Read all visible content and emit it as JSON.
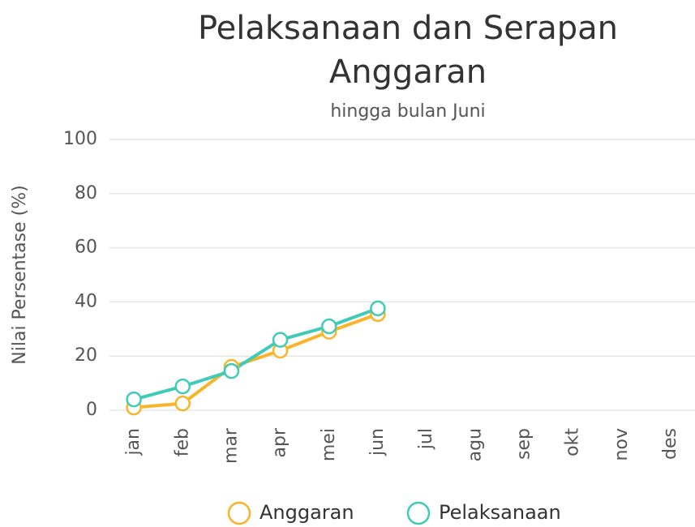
{
  "chart_data": {
    "type": "line",
    "title": "Pelaksanaan dan Serapan Anggaran",
    "subtitle": "hingga bulan Juni",
    "y_label": "Nilai Persentase (%)",
    "categories": [
      "jan",
      "feb",
      "mar",
      "apr",
      "mei",
      "jun",
      "jul",
      "agu",
      "sep",
      "okt",
      "nov",
      "des"
    ],
    "series": [
      {
        "name": "Anggaran",
        "color": "#f9b52a",
        "values": [
          1,
          2.5,
          16,
          22,
          29,
          35.5,
          null,
          null,
          null,
          null,
          null,
          null
        ]
      },
      {
        "name": "Pelaksanaan",
        "color": "#3fcbb8",
        "values": [
          4,
          8.8,
          14.5,
          26,
          31,
          37.6,
          null,
          null,
          null,
          null,
          null,
          null
        ]
      }
    ],
    "ylim": [
      0,
      100
    ],
    "yticks": [
      0,
      20,
      40,
      60,
      80,
      100
    ],
    "grid": true,
    "legend": "bottom"
  }
}
